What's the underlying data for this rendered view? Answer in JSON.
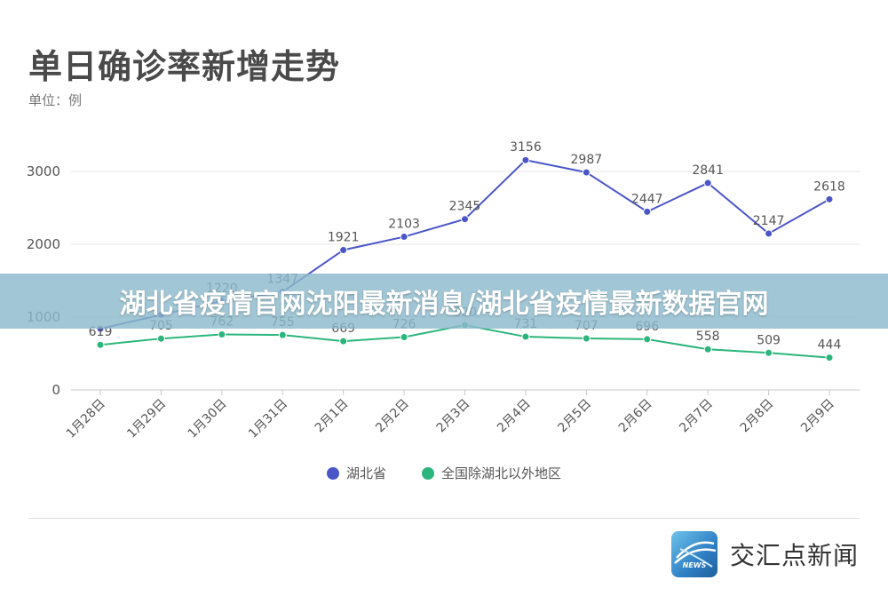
{
  "title": "单日确诊率新增走势",
  "unit": "单位：例",
  "banner": "湖北省疫情官网沈阳最新消息/湖北省疫情最新数据官网",
  "brand": {
    "name": "交汇点新闻",
    "logo_text": "NEWS",
    "logo_icon": "news-logo-icon"
  },
  "chart_data": {
    "type": "line",
    "categories": [
      "1月28日",
      "1月29日",
      "1月30日",
      "1月31日",
      "2月1日",
      "2月2日",
      "2月3日",
      "2月4日",
      "2月5日",
      "2月6日",
      "2月7日",
      "2月8日",
      "2月9日"
    ],
    "ylim": [
      0,
      3300
    ],
    "yticks": [
      0,
      1000,
      2000,
      3000
    ],
    "grid": true,
    "legend_position": "bottom-center",
    "series": [
      {
        "name": "湖北省",
        "color": "#4a56c8",
        "values": [
          840,
          1032,
          1220,
          1347,
          1921,
          2103,
          2345,
          3156,
          2987,
          2447,
          2841,
          2147,
          2618
        ],
        "labels": [
          "",
          "",
          "1220",
          "1347",
          "1921",
          "2103",
          "2345",
          "3156",
          "2987",
          "2447",
          "2841",
          "2147",
          "2618"
        ]
      },
      {
        "name": "全国除湖北以外地区",
        "color": "#2bb57c",
        "values": [
          619,
          705,
          762,
          755,
          669,
          726,
          890,
          731,
          707,
          696,
          558,
          509,
          444
        ],
        "labels": [
          "619",
          "705",
          "762",
          "755",
          "669",
          "726",
          "890",
          "731",
          "707",
          "696",
          "558",
          "509",
          "444"
        ]
      }
    ]
  }
}
